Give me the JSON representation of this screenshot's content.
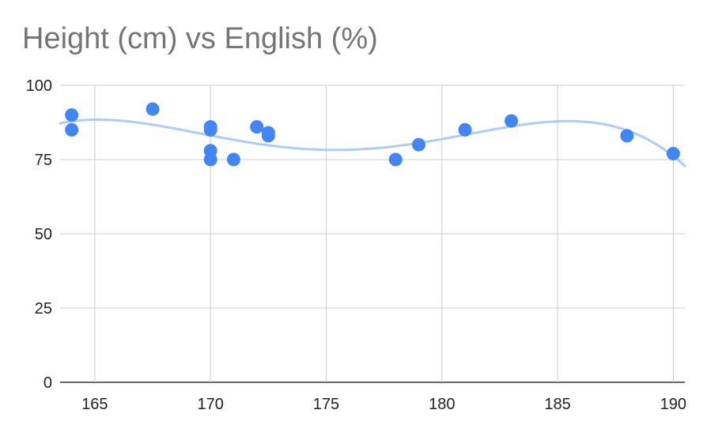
{
  "chart_data": {
    "type": "scatter",
    "title": "Height (cm) vs English (%)",
    "xlabel": "",
    "ylabel": "",
    "xlim": [
      163.5,
      190.5
    ],
    "ylim": [
      0,
      100
    ],
    "x_ticks": [
      "165",
      "170",
      "175",
      "180",
      "185",
      "190"
    ],
    "y_ticks": [
      "0",
      "25",
      "50",
      "75",
      "100"
    ],
    "grid": true,
    "legend": "none",
    "trendline": {
      "type": "polynomial",
      "color": "#aecbfa"
    },
    "point_color": "#4285f4",
    "series": [
      {
        "points": [
          {
            "x": 164,
            "y": 90
          },
          {
            "x": 164,
            "y": 85
          },
          {
            "x": 167.5,
            "y": 92
          },
          {
            "x": 170,
            "y": 86
          },
          {
            "x": 170,
            "y": 85
          },
          {
            "x": 170,
            "y": 78
          },
          {
            "x": 170,
            "y": 75
          },
          {
            "x": 171,
            "y": 75
          },
          {
            "x": 172,
            "y": 86
          },
          {
            "x": 172.5,
            "y": 84
          },
          {
            "x": 172.5,
            "y": 83
          },
          {
            "x": 178,
            "y": 75
          },
          {
            "x": 179,
            "y": 80
          },
          {
            "x": 181,
            "y": 85
          },
          {
            "x": 183,
            "y": 88
          },
          {
            "x": 188,
            "y": 83
          },
          {
            "x": 190,
            "y": 77
          }
        ]
      }
    ]
  }
}
